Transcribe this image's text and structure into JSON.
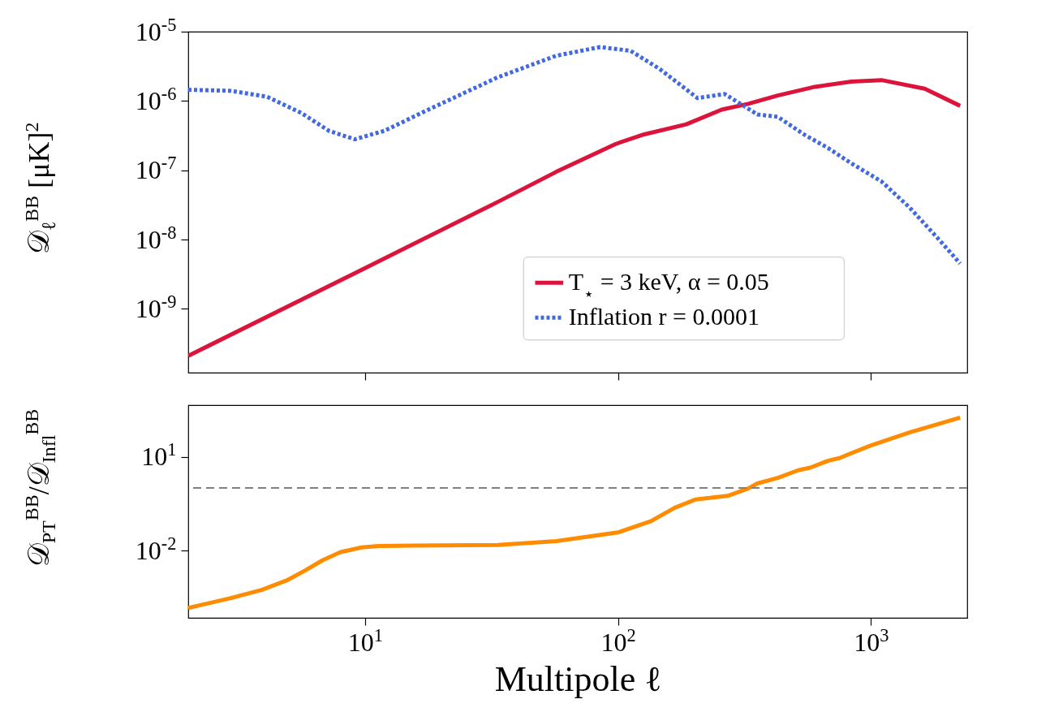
{
  "chart_data": [
    {
      "type": "line",
      "ylabel": "𝒟$_{ℓ}$$^{BB}$ [μK]$^{2}$",
      "xlim": [
        2,
        2400
      ],
      "ylim": [
        1.2e-10,
        1e-05
      ],
      "xticks": [
        {
          "value": 10,
          "label": null
        },
        {
          "value": 100,
          "label": null
        },
        {
          "value": 1000,
          "label": null
        }
      ],
      "yticks": [
        {
          "value": 1e-05,
          "label": "10$^{-5}$"
        },
        {
          "value": 1e-06,
          "label": "10$^{-6}$"
        },
        {
          "value": 1e-07,
          "label": "10$^{-7}$"
        },
        {
          "value": 1e-08,
          "label": "10$^{-8}$"
        },
        {
          "value": 1e-09,
          "label": "10$^{-9}$"
        }
      ],
      "log": "xy",
      "tick_labels": "y",
      "legend": "bottom right",
      "series": [
        {
          "name": "T$_{⋆}$ = 3 keV, α = 0.05",
          "color": "#dc143c",
          "line_style": "solid",
          "x": [
            2,
            9.6,
            33.5,
            57,
            98,
            127,
            186,
            257,
            327,
            428,
            600,
            835,
            1100,
            1630,
            2250
          ],
          "values": [
            2.1e-10,
            3.6e-09,
            3.5e-08,
            9.5e-08,
            2.4e-07,
            3.3e-07,
            4.6e-07,
            7.5e-07,
            9.1e-07,
            1.2e-06,
            1.6e-06,
            1.9e-06,
            2e-06,
            1.5e-06,
            8.5e-07
          ]
        },
        {
          "name": "Inflation r = 0.0001",
          "color": "#4169e1",
          "line_style": "dotted",
          "x": [
            2,
            2.95,
            4.1,
            5.6,
            7.2,
            9.1,
            11.9,
            17.8,
            33.5,
            57,
            85,
            112,
            146,
            206,
            264,
            355,
            428,
            542,
            675,
            835,
            1100,
            1420,
            1870,
            2250
          ],
          "values": [
            1.45e-06,
            1.4e-06,
            1.15e-06,
            6.7e-07,
            3.7e-07,
            2.8e-07,
            3.7e-07,
            7.5e-07,
            2.2e-06,
            4.5e-06,
            6e-06,
            5.3e-06,
            2.9e-06,
            1.1e-06,
            1.26e-06,
            6.4e-07,
            5.9e-07,
            3.3e-07,
            2.1e-07,
            1.26e-07,
            6.9e-08,
            2.9e-08,
            9.7e-09,
            4.5e-09
          ]
        }
      ]
    },
    {
      "type": "line",
      "xlabel": "Multipole ℓ",
      "ylabel": "𝒟$_{PT}$$^{BB}$/𝒟$_{Infl}$$^{BB}$",
      "xlim": [
        2,
        2400
      ],
      "ylim": [
        7e-05,
        450
      ],
      "xticks": [
        {
          "value": 10,
          "label": "10$^{1}$"
        },
        {
          "value": 100,
          "label": "10$^{2}$"
        },
        {
          "value": 1000,
          "label": "10$^{3}$"
        }
      ],
      "yticks": [
        {
          "value": 10,
          "label": "10$^{1}$"
        },
        {
          "value": 0.01,
          "label": "10$^{-2}$"
        }
      ],
      "log": "xy",
      "ref_lines": [
        {
          "axis": "y",
          "value": 1,
          "color": "#808080",
          "line_style": "dashed"
        }
      ],
      "series": [
        {
          "color": "#ff8c00",
          "line_style": "solid",
          "x": [
            2,
            2.95,
            3.9,
            4.9,
            5.8,
            6.8,
            8,
            9.7,
            11.3,
            33.5,
            57,
            100,
            135,
            167,
            202,
            271,
            327,
            355,
            428,
            515,
            575,
            675,
            750,
            835,
            1000,
            1420,
            2250
          ],
          "values": [
            0.000145,
            0.0003,
            0.00055,
            0.0011,
            0.0023,
            0.0049,
            0.0089,
            0.0126,
            0.014,
            0.015,
            0.02,
            0.038,
            0.087,
            0.23,
            0.43,
            0.56,
            0.97,
            1.4,
            2.1,
            3.7,
            4.5,
            7.4,
            9.1,
            13,
            23,
            60,
            180
          ]
        }
      ]
    }
  ]
}
